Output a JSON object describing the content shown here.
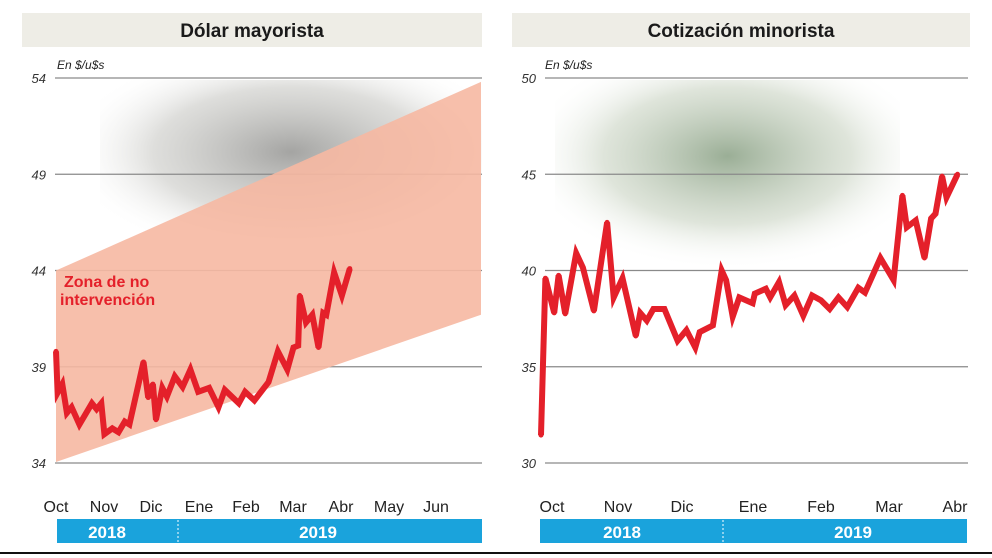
{
  "chart_data": [
    {
      "type": "line",
      "title": "Dólar mayorista",
      "ylabel": "En $/u$s",
      "ylim": [
        34,
        54
      ],
      "yticks": [
        "54",
        "49",
        "44",
        "39",
        "34"
      ],
      "xticks": [
        "Oct",
        "Nov",
        "Dic",
        "Ene",
        "Feb",
        "Mar",
        "Abr",
        "May",
        "Jun"
      ],
      "xlim": [
        "2018-10-01",
        "2019-07-01"
      ],
      "years": [
        "2018",
        "2019"
      ],
      "grid": true,
      "annotation": "Zona de no intervención",
      "band": {
        "lower": [
          {
            "x": "2018-10-01",
            "y": 34.05
          },
          {
            "x": "2019-06-30",
            "y": 41.7
          }
        ],
        "upper": [
          {
            "x": "2018-10-01",
            "y": 44.0
          },
          {
            "x": "2019-06-30",
            "y": 53.8
          }
        ]
      },
      "series": [
        {
          "color": "#e4202a",
          "points": [
            {
              "x": "2018-10-01",
              "y": 39.8
            },
            {
              "x": "2018-10-02",
              "y": 37.65
            },
            {
              "x": "2018-10-05",
              "y": 38.1
            },
            {
              "x": "2018-10-08",
              "y": 36.6
            },
            {
              "x": "2018-10-11",
              "y": 36.9
            },
            {
              "x": "2018-10-16",
              "y": 36.0
            },
            {
              "x": "2018-10-24",
              "y": 37.1
            },
            {
              "x": "2018-10-27",
              "y": 36.8
            },
            {
              "x": "2018-10-30",
              "y": 37.1
            },
            {
              "x": "2018-11-01",
              "y": 35.5
            },
            {
              "x": "2018-11-06",
              "y": 35.8
            },
            {
              "x": "2018-11-10",
              "y": 35.6
            },
            {
              "x": "2018-11-14",
              "y": 36.15
            },
            {
              "x": "2018-11-17",
              "y": 36.0
            },
            {
              "x": "2018-11-26",
              "y": 39.25
            },
            {
              "x": "2018-11-29",
              "y": 37.4
            },
            {
              "x": "2018-12-02",
              "y": 38.1
            },
            {
              "x": "2018-12-04",
              "y": 36.25
            },
            {
              "x": "2018-12-08",
              "y": 37.9
            },
            {
              "x": "2018-12-11",
              "y": 37.45
            },
            {
              "x": "2018-12-16",
              "y": 38.5
            },
            {
              "x": "2018-12-21",
              "y": 37.95
            },
            {
              "x": "2018-12-26",
              "y": 38.85
            },
            {
              "x": "2018-12-31",
              "y": 37.7
            },
            {
              "x": "2019-01-07",
              "y": 37.9
            },
            {
              "x": "2019-01-13",
              "y": 36.9
            },
            {
              "x": "2019-01-17",
              "y": 37.8
            },
            {
              "x": "2019-01-26",
              "y": 37.1
            },
            {
              "x": "2019-01-30",
              "y": 37.7
            },
            {
              "x": "2019-02-05",
              "y": 37.25
            },
            {
              "x": "2019-02-14",
              "y": 38.2
            },
            {
              "x": "2019-02-20",
              "y": 39.8
            },
            {
              "x": "2019-02-26",
              "y": 38.85
            },
            {
              "x": "2019-03-02",
              "y": 40.0
            },
            {
              "x": "2019-03-05",
              "y": 40.1
            },
            {
              "x": "2019-03-06",
              "y": 42.7
            },
            {
              "x": "2019-03-10",
              "y": 41.3
            },
            {
              "x": "2019-03-14",
              "y": 41.7
            },
            {
              "x": "2019-03-18",
              "y": 40.0
            },
            {
              "x": "2019-03-21",
              "y": 41.8
            },
            {
              "x": "2019-03-23",
              "y": 41.7
            },
            {
              "x": "2019-03-28",
              "y": 43.9
            },
            {
              "x": "2019-04-02",
              "y": 42.7
            },
            {
              "x": "2019-04-07",
              "y": 44.1
            }
          ]
        }
      ]
    },
    {
      "type": "line",
      "title": "Cotización minorista",
      "ylabel": "En $/u$s",
      "ylim": [
        30,
        50
      ],
      "yticks": [
        "50",
        "45",
        "40",
        "35",
        "30"
      ],
      "xticks": [
        "Oct",
        "Nov",
        "Dic",
        "Ene",
        "Feb",
        "Mar",
        "Abr"
      ],
      "years": [
        "2018",
        "2019"
      ],
      "grid": true,
      "series": [
        {
          "color": "#e4202a",
          "points": [
            {
              "x": "2018-09-26",
              "y": 31.45
            },
            {
              "x": "2018-09-28",
              "y": 39.6
            },
            {
              "x": "2018-09-30",
              "y": 38.7
            },
            {
              "x": "2018-10-02",
              "y": 37.8
            },
            {
              "x": "2018-10-04",
              "y": 39.75
            },
            {
              "x": "2018-10-07",
              "y": 37.75
            },
            {
              "x": "2018-10-12",
              "y": 40.9
            },
            {
              "x": "2018-10-15",
              "y": 40.15
            },
            {
              "x": "2018-10-20",
              "y": 37.9
            },
            {
              "x": "2018-10-26",
              "y": 42.5
            },
            {
              "x": "2018-10-29",
              "y": 38.6
            },
            {
              "x": "2018-11-02",
              "y": 39.6
            },
            {
              "x": "2018-11-08",
              "y": 36.6
            },
            {
              "x": "2018-11-10",
              "y": 37.8
            },
            {
              "x": "2018-11-13",
              "y": 37.4
            },
            {
              "x": "2018-11-16",
              "y": 38.0
            },
            {
              "x": "2018-11-21",
              "y": 38.0
            },
            {
              "x": "2018-11-27",
              "y": 36.35
            },
            {
              "x": "2018-12-01",
              "y": 36.9
            },
            {
              "x": "2018-12-05",
              "y": 36.0
            },
            {
              "x": "2018-12-07",
              "y": 36.8
            },
            {
              "x": "2018-12-13",
              "y": 37.15
            },
            {
              "x": "2018-12-17",
              "y": 40.0
            },
            {
              "x": "2018-12-19",
              "y": 39.5
            },
            {
              "x": "2018-12-22",
              "y": 37.6
            },
            {
              "x": "2018-12-25",
              "y": 38.6
            },
            {
              "x": "2018-12-31",
              "y": 38.3
            },
            {
              "x": "2019-01-01",
              "y": 38.8
            },
            {
              "x": "2019-01-06",
              "y": 39.05
            },
            {
              "x": "2019-01-08",
              "y": 38.6
            },
            {
              "x": "2019-01-12",
              "y": 39.4
            },
            {
              "x": "2019-01-15",
              "y": 38.2
            },
            {
              "x": "2019-01-19",
              "y": 38.7
            },
            {
              "x": "2019-01-23",
              "y": 37.65
            },
            {
              "x": "2019-01-27",
              "y": 38.7
            },
            {
              "x": "2019-01-31",
              "y": 38.45
            },
            {
              "x": "2019-02-04",
              "y": 38.0
            },
            {
              "x": "2019-02-08",
              "y": 38.6
            },
            {
              "x": "2019-02-12",
              "y": 38.1
            },
            {
              "x": "2019-02-17",
              "y": 39.1
            },
            {
              "x": "2019-02-20",
              "y": 38.85
            },
            {
              "x": "2019-02-27",
              "y": 40.65
            },
            {
              "x": "2019-03-05",
              "y": 39.5
            },
            {
              "x": "2019-03-09",
              "y": 43.9
            },
            {
              "x": "2019-03-11",
              "y": 42.25
            },
            {
              "x": "2019-03-15",
              "y": 42.6
            },
            {
              "x": "2019-03-19",
              "y": 40.65
            },
            {
              "x": "2019-03-22",
              "y": 42.7
            },
            {
              "x": "2019-03-24",
              "y": 42.95
            },
            {
              "x": "2019-03-27",
              "y": 44.9
            },
            {
              "x": "2019-03-29",
              "y": 43.8
            },
            {
              "x": "2019-04-03",
              "y": 45.0
            }
          ]
        }
      ]
    }
  ],
  "colors": {
    "line": "#e4202a",
    "band": "#f6b8a2",
    "year_bar": "#1aa3dc",
    "header_bg": "#eeede6"
  }
}
